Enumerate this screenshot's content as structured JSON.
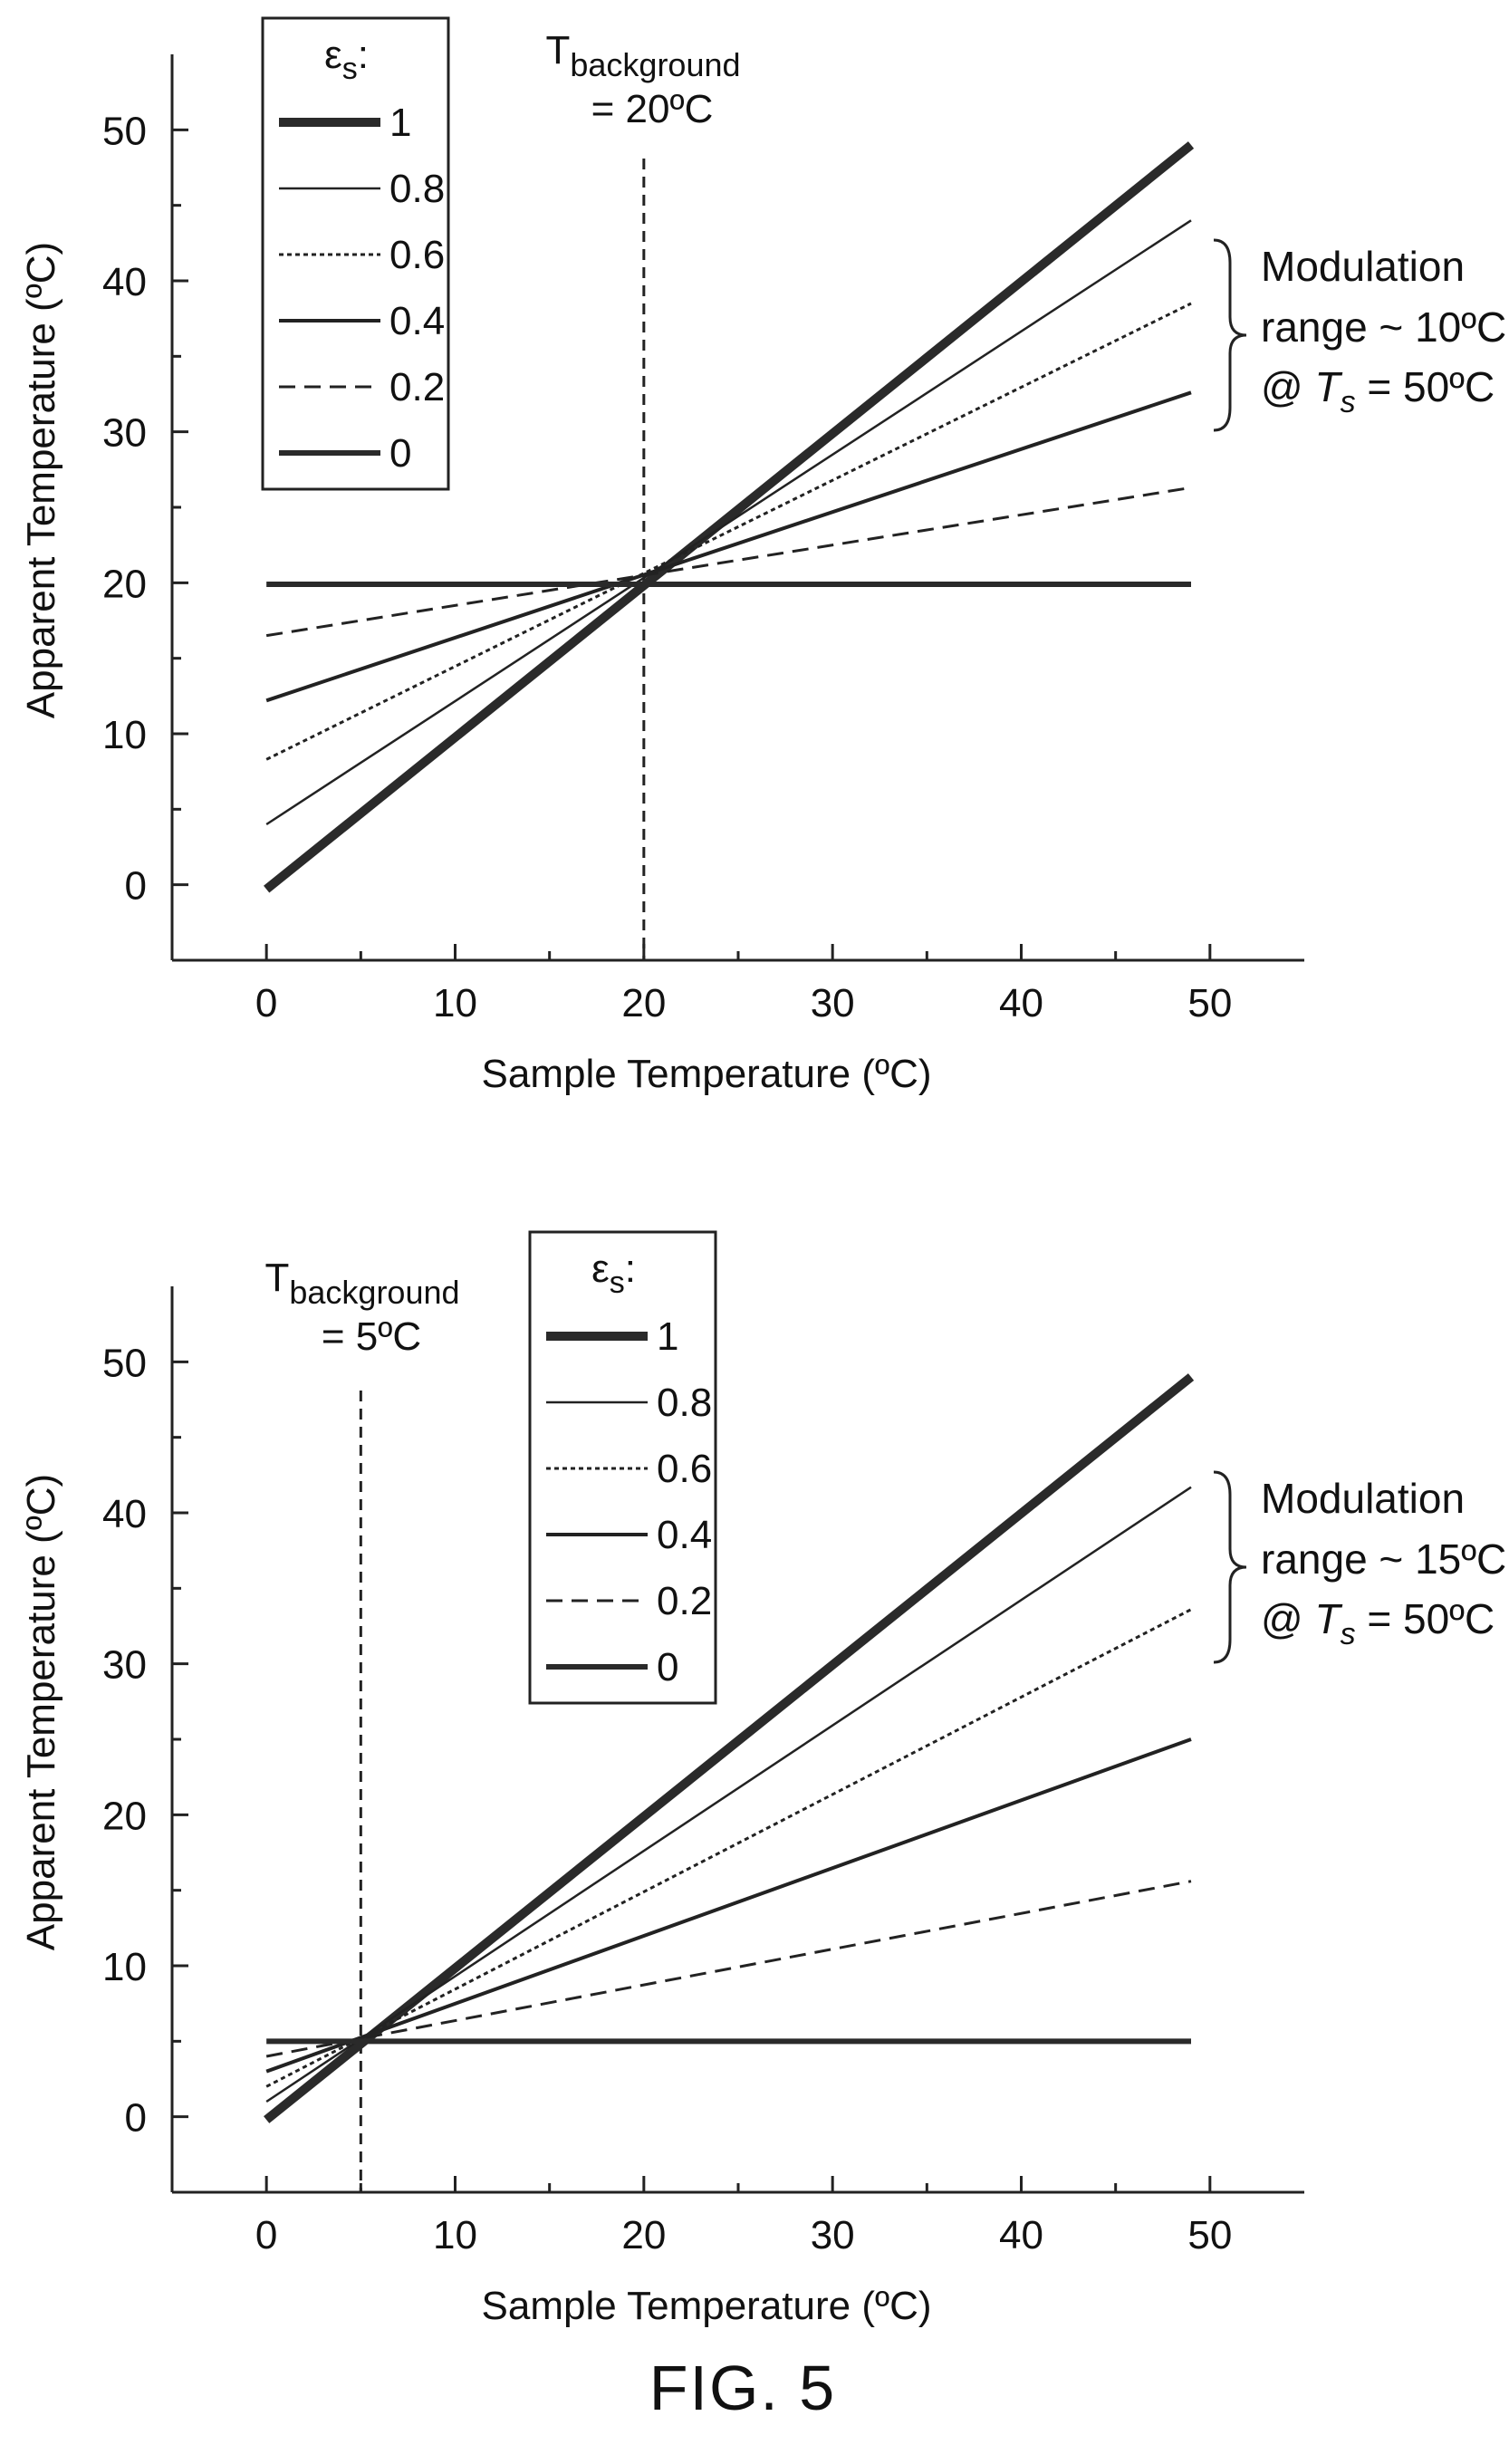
{
  "figure_caption": "FIG. 5",
  "chart_data": [
    {
      "type": "line",
      "xlabel": "Sample Temperature (ºC)",
      "ylabel": "Apparent Temperature (ºC)",
      "xlim": [
        -5,
        55
      ],
      "ylim": [
        -5,
        55
      ],
      "xticks": [
        0,
        10,
        20,
        30,
        40,
        50
      ],
      "yticks": [
        0,
        10,
        20,
        30,
        40,
        50
      ],
      "grid": false,
      "legend": {
        "title_main": "ε",
        "title_sub": "s",
        "title_suffix": ":",
        "placement": "top-left"
      },
      "background": {
        "main": "T",
        "sub": "background",
        "value_label": "= 20ºC",
        "x": 20
      },
      "annotation": {
        "line1": "Modulation",
        "line2": "range ~ 10ºC",
        "line3_prefix": "@ ",
        "line3_var": "T",
        "line3_sub": "s",
        "line3_suffix": " = 50ºC"
      },
      "series": [
        {
          "name": "1",
          "style": "thick",
          "x": [
            0,
            49
          ],
          "y": [
            -0.3,
            49
          ]
        },
        {
          "name": "0.8",
          "style": "thin",
          "x": [
            0,
            49
          ],
          "y": [
            4,
            44
          ]
        },
        {
          "name": "0.6",
          "style": "dotted",
          "x": [
            0,
            49
          ],
          "y": [
            8.3,
            38.5
          ]
        },
        {
          "name": "0.4",
          "style": "medium",
          "x": [
            0,
            49
          ],
          "y": [
            12.2,
            32.6
          ]
        },
        {
          "name": "0.2",
          "style": "dashed",
          "x": [
            0,
            49
          ],
          "y": [
            16.5,
            26.3
          ]
        },
        {
          "name": "0",
          "style": "flat",
          "x": [
            0,
            49
          ],
          "y": [
            19.9,
            19.9
          ]
        }
      ]
    },
    {
      "type": "line",
      "xlabel": "Sample Temperature (ºC)",
      "ylabel": "Apparent Temperature (ºC)",
      "xlim": [
        -5,
        55
      ],
      "ylim": [
        -5,
        55
      ],
      "xticks": [
        0,
        10,
        20,
        30,
        40,
        50
      ],
      "yticks": [
        0,
        10,
        20,
        30,
        40,
        50
      ],
      "grid": false,
      "legend": {
        "title_main": "ε",
        "title_sub": "s",
        "title_suffix": ":",
        "placement": "top-center"
      },
      "background": {
        "main": "T",
        "sub": "background",
        "value_label": "= 5ºC",
        "x": 5
      },
      "annotation": {
        "line1": "Modulation",
        "line2": "range ~ 15ºC",
        "line3_prefix": "@ ",
        "line3_var": "T",
        "line3_sub": "s",
        "line3_suffix": " = 50ºC"
      },
      "series": [
        {
          "name": "1",
          "style": "thick",
          "x": [
            0,
            49
          ],
          "y": [
            -0.2,
            49
          ]
        },
        {
          "name": "0.8",
          "style": "thin",
          "x": [
            0,
            49
          ],
          "y": [
            1,
            41.7
          ]
        },
        {
          "name": "0.6",
          "style": "dotted",
          "x": [
            0,
            49
          ],
          "y": [
            2,
            33.6
          ]
        },
        {
          "name": "0.4",
          "style": "medium",
          "x": [
            0,
            49
          ],
          "y": [
            3,
            25
          ]
        },
        {
          "name": "0.2",
          "style": "dashed",
          "x": [
            0,
            49
          ],
          "y": [
            4,
            15.6
          ]
        },
        {
          "name": "0",
          "style": "flat",
          "x": [
            0,
            49
          ],
          "y": [
            5,
            5
          ]
        }
      ]
    }
  ]
}
